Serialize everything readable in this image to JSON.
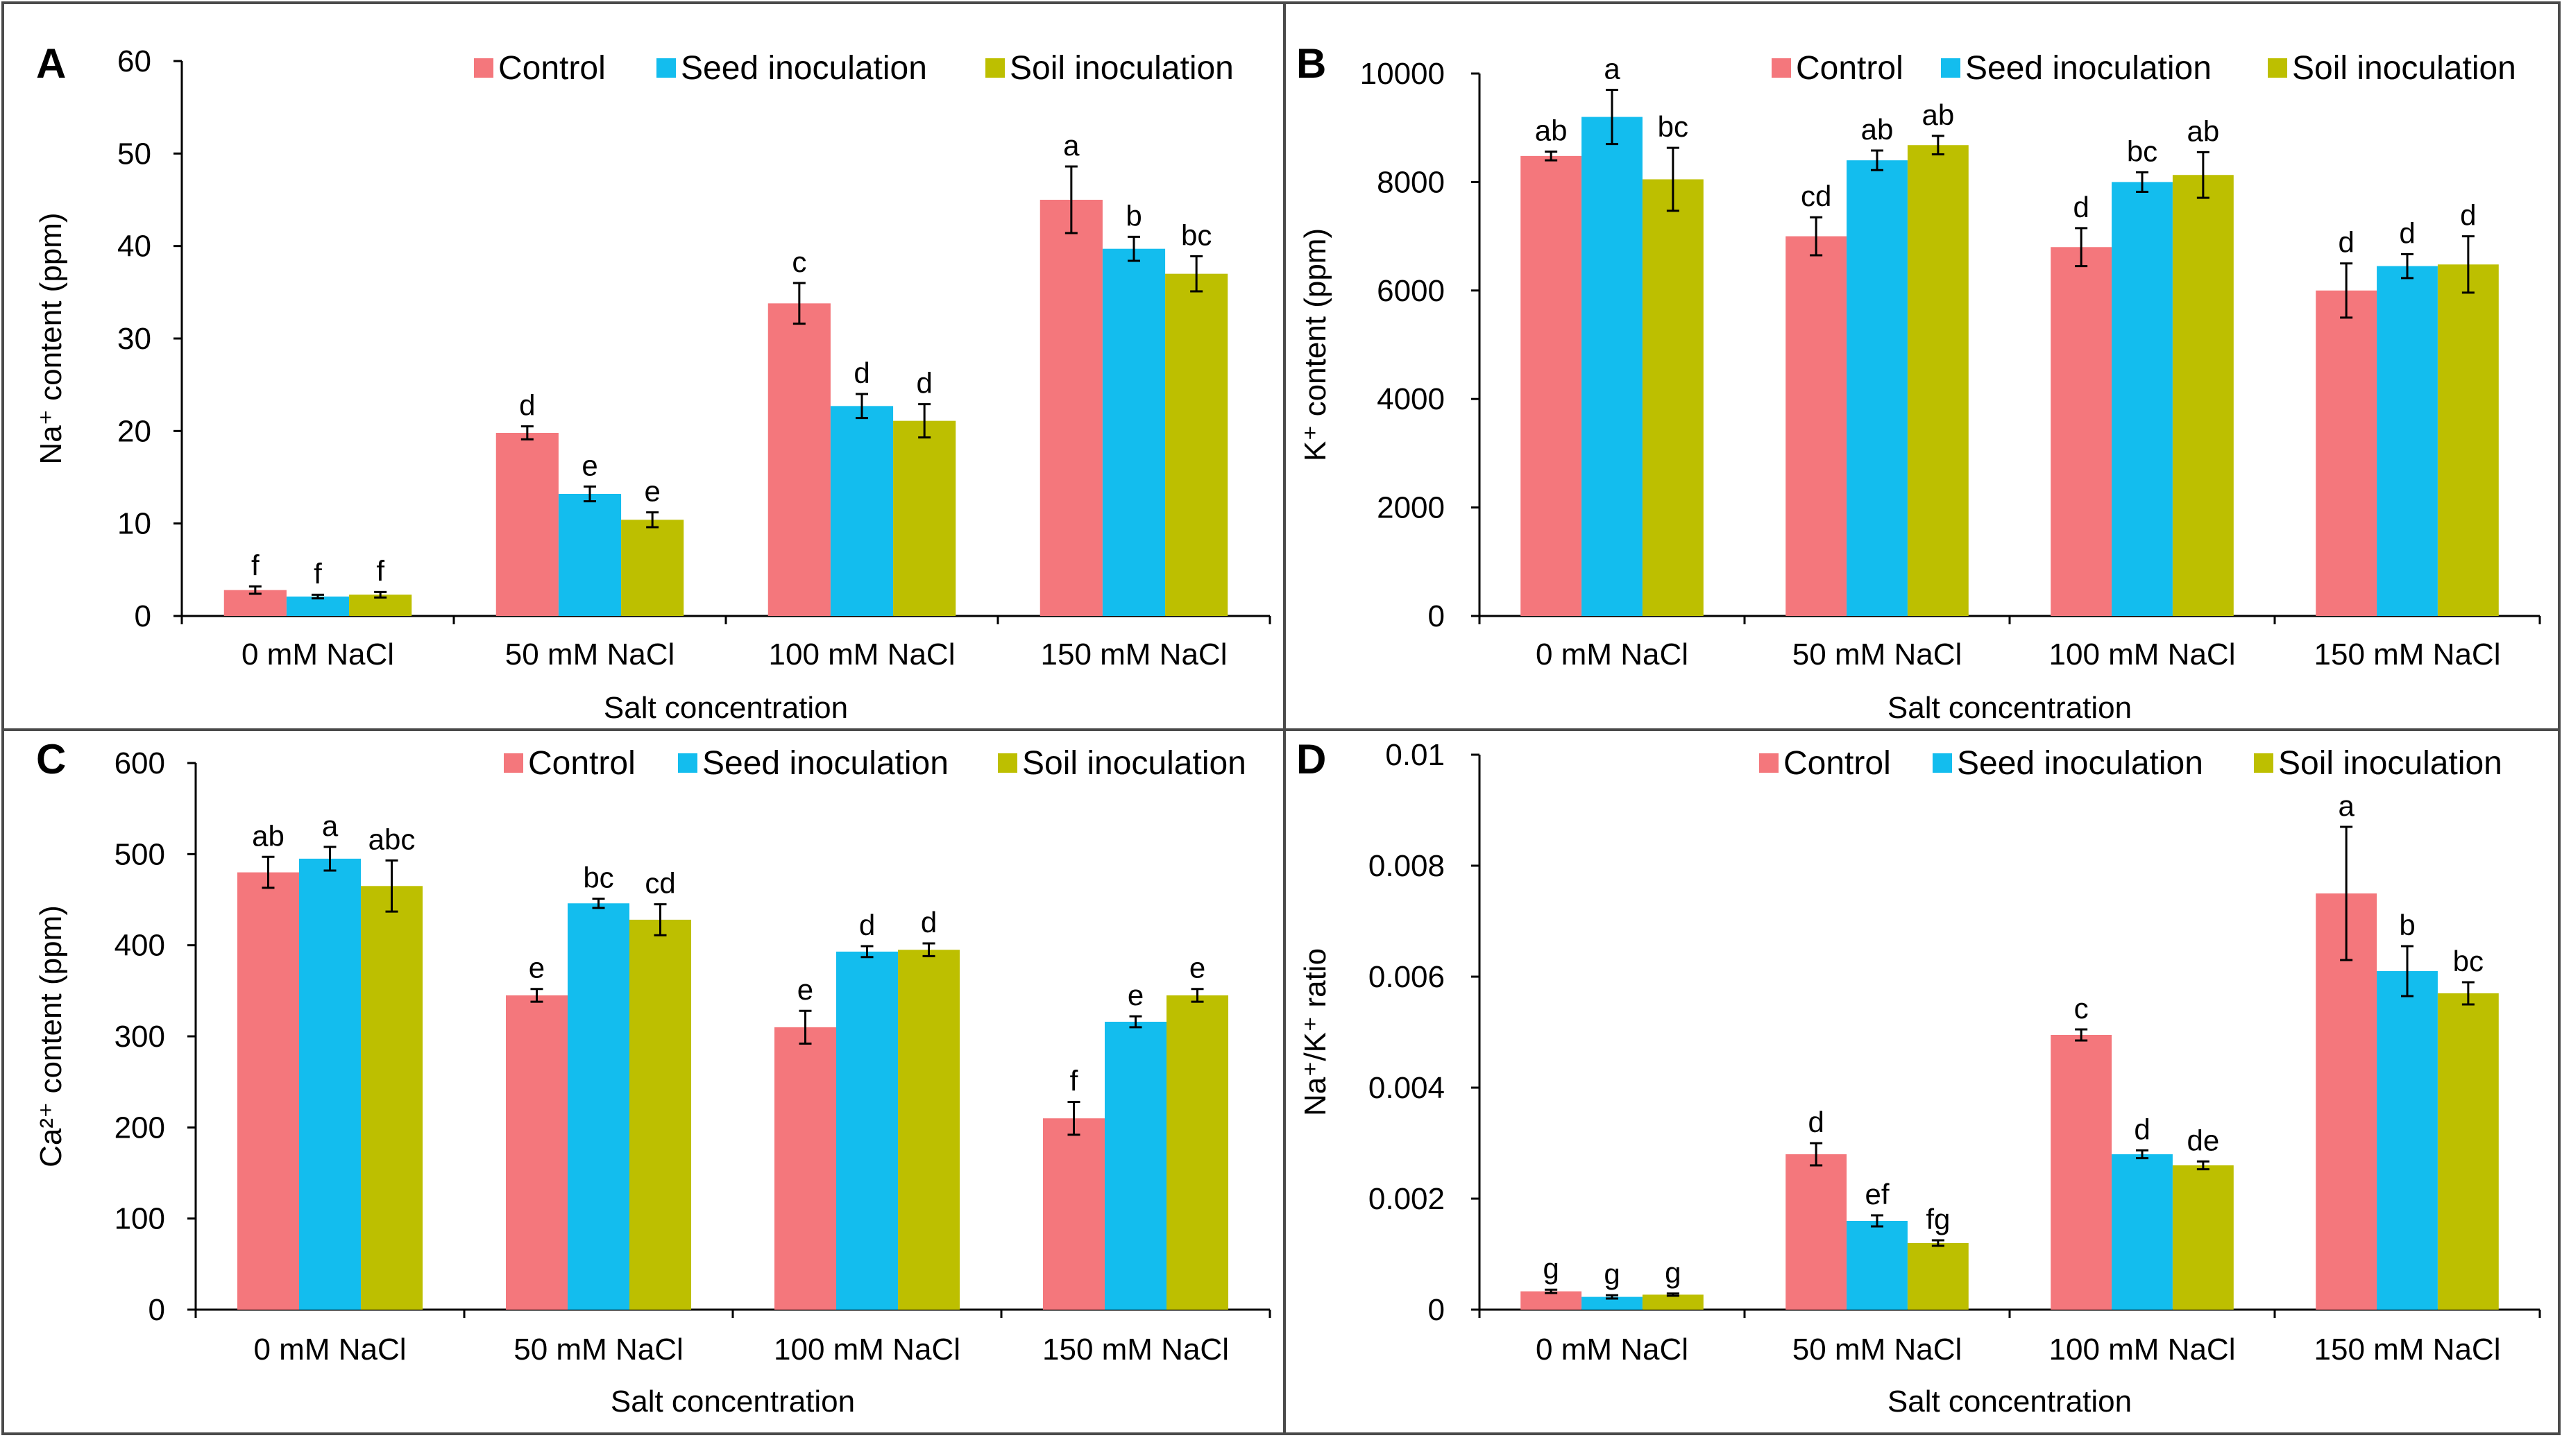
{
  "figure": {
    "series_colors": {
      "Control": "#F4777C",
      "Seed inoculation": "#13BDEE",
      "Soil inoculation": "#BDBF00"
    },
    "frame_color": "#4a4a4a"
  },
  "chart_data": [
    {
      "panel": "A",
      "type": "bar",
      "title": "",
      "xlabel": "Salt concentration",
      "ylabel": "Na⁺ content (ppm)",
      "ylim": [
        0,
        60
      ],
      "yticks": [
        "0",
        "10",
        "20",
        "30",
        "40",
        "50",
        "60"
      ],
      "legend": "top-right",
      "categories": [
        "0 mM NaCl",
        "50 mM NaCl",
        "100 mM NaCl",
        "150 mM NaCl"
      ],
      "series": [
        {
          "name": "Control",
          "values": [
            2.8,
            19.8,
            33.8,
            45
          ],
          "errors": [
            0.4,
            0.7,
            2.2,
            3.6
          ],
          "labels": [
            "f",
            "d",
            "c",
            "a"
          ]
        },
        {
          "name": "Seed inoculation",
          "values": [
            2.1,
            13.2,
            22.7,
            39.7
          ],
          "errors": [
            0.2,
            0.8,
            1.3,
            1.3
          ],
          "labels": [
            "f",
            "e",
            "d",
            "b"
          ]
        },
        {
          "name": "Soil inoculation",
          "values": [
            2.3,
            10.4,
            21.1,
            37
          ],
          "errors": [
            0.3,
            0.8,
            1.8,
            1.9
          ],
          "labels": [
            "f",
            "e",
            "d",
            "bc"
          ]
        }
      ]
    },
    {
      "panel": "B",
      "type": "bar",
      "title": "",
      "xlabel": "Salt concentration",
      "ylabel": "K⁺ content (ppm)",
      "ylim": [
        0,
        10000
      ],
      "yticks": [
        "0",
        "2000",
        "4000",
        "6000",
        "8000",
        "10000"
      ],
      "legend": "top-right",
      "categories": [
        "0 mM NaCl",
        "50 mM NaCl",
        "100 mM NaCl",
        "150 mM NaCl"
      ],
      "series": [
        {
          "name": "Control",
          "values": [
            8480,
            7000,
            6800,
            6000
          ],
          "errors": [
            80,
            350,
            350,
            500
          ],
          "labels": [
            "ab",
            "cd",
            "d",
            "d"
          ]
        },
        {
          "name": "Seed inoculation",
          "values": [
            9200,
            8400,
            8000,
            6450
          ],
          "errors": [
            500,
            180,
            180,
            220
          ],
          "labels": [
            "a",
            "ab",
            "bc",
            "d"
          ]
        },
        {
          "name": "Soil inoculation",
          "values": [
            8050,
            8680,
            8130,
            6480
          ],
          "errors": [
            580,
            170,
            420,
            520
          ],
          "labels": [
            "bc",
            "ab",
            "ab",
            "d"
          ]
        }
      ]
    },
    {
      "panel": "C",
      "type": "bar",
      "title": "",
      "xlabel": "Salt concentration",
      "ylabel": "Ca²⁺ content (ppm)",
      "ylim": [
        0,
        600
      ],
      "yticks": [
        "0",
        "100",
        "200",
        "300",
        "400",
        "500",
        "600"
      ],
      "legend": "top-right",
      "categories": [
        "0 mM NaCl",
        "50 mM NaCl",
        "100 mM NaCl",
        "150 mM NaCl"
      ],
      "series": [
        {
          "name": "Control",
          "values": [
            480,
            345,
            310,
            210
          ],
          "errors": [
            17,
            7,
            18,
            18
          ],
          "labels": [
            "ab",
            "e",
            "e",
            "f"
          ]
        },
        {
          "name": "Seed inoculation",
          "values": [
            495,
            446,
            393,
            316
          ],
          "errors": [
            13,
            5,
            6,
            6
          ],
          "labels": [
            "a",
            "bc",
            "d",
            "e"
          ]
        },
        {
          "name": "Soil inoculation",
          "values": [
            465,
            428,
            395,
            345
          ],
          "errors": [
            28,
            17,
            7,
            7
          ],
          "labels": [
            "abc",
            "cd",
            "d",
            "e"
          ]
        }
      ]
    },
    {
      "panel": "D",
      "type": "bar",
      "title": "",
      "xlabel": "Salt concentration",
      "ylabel": "Na⁺/K⁺ ratio",
      "ylim": [
        0,
        0.01
      ],
      "yticks": [
        "0",
        "0.002",
        "0.004",
        "0.006",
        "0.008",
        "0.01"
      ],
      "legend": "top-right",
      "categories": [
        "0 mM NaCl",
        "50 mM NaCl",
        "100 mM NaCl",
        "150 mM NaCl"
      ],
      "series": [
        {
          "name": "Control",
          "values": [
            0.00033,
            0.0028,
            0.00495,
            0.0075
          ],
          "errors": [
            3e-05,
            0.0002,
            0.0001,
            0.0012
          ],
          "labels": [
            "g",
            "d",
            "c",
            "a"
          ]
        },
        {
          "name": "Seed inoculation",
          "values": [
            0.00023,
            0.0016,
            0.0028,
            0.0061
          ],
          "errors": [
            3e-05,
            0.0001,
            7e-05,
            0.00045
          ],
          "labels": [
            "g",
            "ef",
            "d",
            "b"
          ]
        },
        {
          "name": "Soil inoculation",
          "values": [
            0.00027,
            0.0012,
            0.0026,
            0.0057
          ],
          "errors": [
            2e-05,
            5e-05,
            7e-05,
            0.0002
          ],
          "labels": [
            "g",
            "fg",
            "de",
            "bc"
          ]
        }
      ]
    }
  ]
}
